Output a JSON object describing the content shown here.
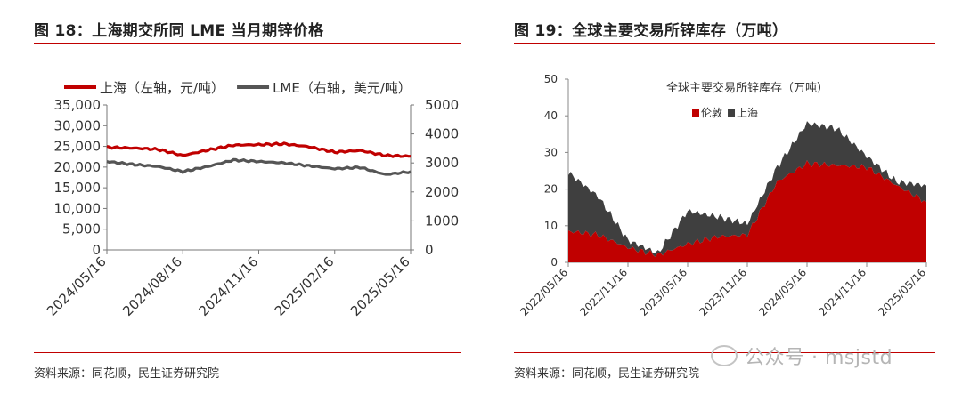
{
  "left": {
    "title": "图 18：上海期交所同 LME 当月期锌价格",
    "source": "资料来源：同花顺，民生证券研究院"
  },
  "right": {
    "title": "图 19：全球主要交易所锌库存（万吨）",
    "source": "资料来源：同花顺，民生证券研究院"
  },
  "watermark": "公众号 · msjstd",
  "colors": {
    "red": "#c00000",
    "gray": "#555555",
    "dark": "#3f3f3f"
  },
  "chart_data": [
    {
      "type": "line",
      "title": "",
      "x": [
        "2024/05/16",
        "2024/06/16",
        "2024/07/16",
        "2024/08/16",
        "2024/09/16",
        "2024/10/16",
        "2024/11/16",
        "2024/12/16",
        "2025/01/16",
        "2025/02/16",
        "2025/03/16",
        "2025/04/16",
        "2025/05/16"
      ],
      "x_ticks": [
        "2024/05/16",
        "2024/08/16",
        "2024/11/16",
        "2025/02/16",
        "2025/05/16"
      ],
      "series": [
        {
          "name": "上海（左轴，元/吨）",
          "axis": "left",
          "color": "#c00000",
          "values": [
            24800,
            24600,
            24300,
            22800,
            24100,
            25300,
            25400,
            25600,
            24900,
            23600,
            24000,
            22800,
            22600
          ]
        },
        {
          "name": "LME（右轴，美元/吨）",
          "axis": "right",
          "color": "#555555",
          "values": [
            3050,
            2950,
            2880,
            2700,
            2880,
            3100,
            3050,
            3000,
            2900,
            2800,
            2850,
            2600,
            2700
          ]
        }
      ],
      "ylim_left": [
        0,
        35000
      ],
      "yticks_left": [
        "0",
        "5,000",
        "10,000",
        "15,000",
        "20,000",
        "25,000",
        "30,000",
        "35,000"
      ],
      "ylim_right": [
        0,
        5000
      ],
      "yticks_right": [
        "0",
        "1000",
        "2000",
        "3000",
        "4000",
        "5000"
      ],
      "legend_position": "top"
    },
    {
      "type": "area",
      "title": "全球主要交易所锌库存（万吨）",
      "stacked": true,
      "x": [
        "2022/05/16",
        "2022/08/16",
        "2022/11/16",
        "2023/02/16",
        "2023/05/16",
        "2023/08/16",
        "2023/11/16",
        "2024/02/16",
        "2024/05/16",
        "2024/08/16",
        "2024/11/16",
        "2025/02/16",
        "2025/05/16"
      ],
      "x_ticks": [
        "2022/05/16",
        "2022/11/16",
        "2023/05/16",
        "2023/11/16",
        "2024/05/16",
        "2024/11/16",
        "2025/05/16"
      ],
      "series": [
        {
          "name": "伦敦",
          "color": "#c00000",
          "values": [
            8.5,
            7.5,
            4.0,
            2.0,
            5.0,
            7.0,
            7.5,
            22.0,
            27.0,
            26.5,
            26.0,
            21.0,
            16.5
          ]
        },
        {
          "name": "上海",
          "color": "#3f3f3f",
          "values": [
            16.0,
            10.5,
            2.0,
            0.5,
            9.0,
            5.5,
            3.0,
            4.0,
            11.0,
            10.0,
            3.0,
            1.0,
            4.5
          ]
        }
      ],
      "ylim": [
        0,
        50
      ],
      "yticks": [
        "0",
        "10",
        "20",
        "30",
        "40",
        "50"
      ],
      "legend_position": "top-center"
    }
  ]
}
